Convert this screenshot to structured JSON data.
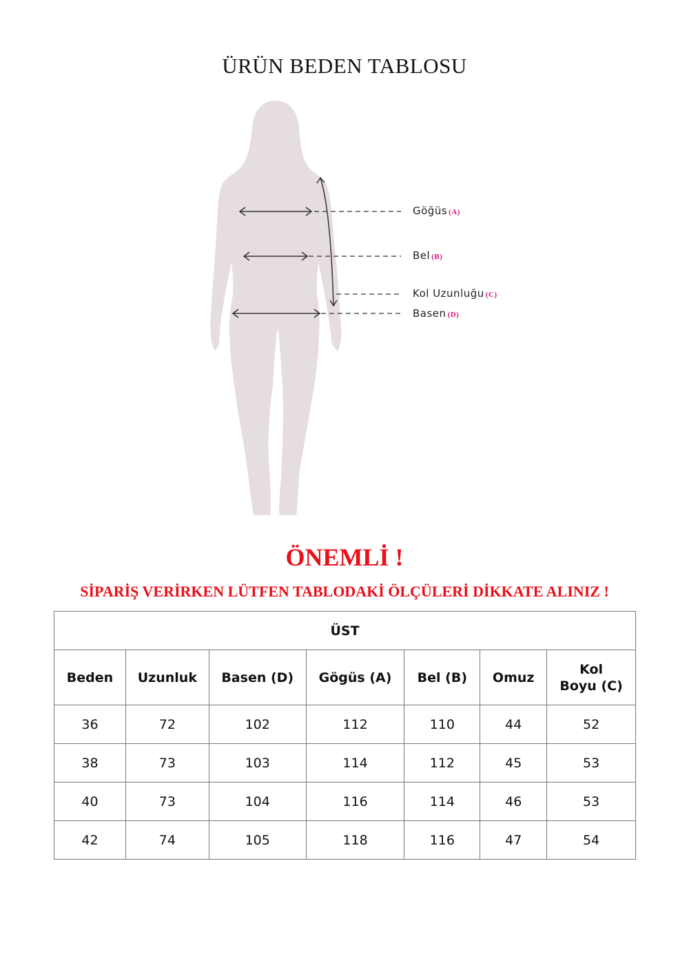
{
  "title": "ÜRÜN BEDEN TABLOSU",
  "diagram": {
    "labels": [
      {
        "text": "Göğüs",
        "code": "(A)"
      },
      {
        "text": "Bel",
        "code": "(B)"
      },
      {
        "text": "Kol Uzunluğu",
        "code": "(C)"
      },
      {
        "text": "Basen",
        "code": "(D)"
      }
    ],
    "colors": {
      "silhouette": "#e6dede",
      "code": "#d6147a"
    }
  },
  "notice": {
    "heading": "ÖNEMLİ !",
    "text": "SİPARİŞ VERİRKEN LÜTFEN TABLODAKİ ÖLÇÜLERİ DİKKATE ALINIZ !",
    "color": "#e8101a"
  },
  "table": {
    "section": "ÜST",
    "headers": [
      "Beden",
      "Uzunluk",
      "Basen (D)",
      "Gögüs (A)",
      "Bel (B)",
      "Omuz",
      "Kol\nBoyu (C)"
    ],
    "header_last_lines": [
      "Kol",
      "Boyu (C)"
    ],
    "rows": [
      [
        "36",
        "72",
        "102",
        "112",
        "110",
        "44",
        "52"
      ],
      [
        "38",
        "73",
        "103",
        "114",
        "112",
        "45",
        "53"
      ],
      [
        "40",
        "73",
        "104",
        "116",
        "114",
        "46",
        "53"
      ],
      [
        "42",
        "74",
        "105",
        "118",
        "116",
        "47",
        "54"
      ]
    ]
  }
}
